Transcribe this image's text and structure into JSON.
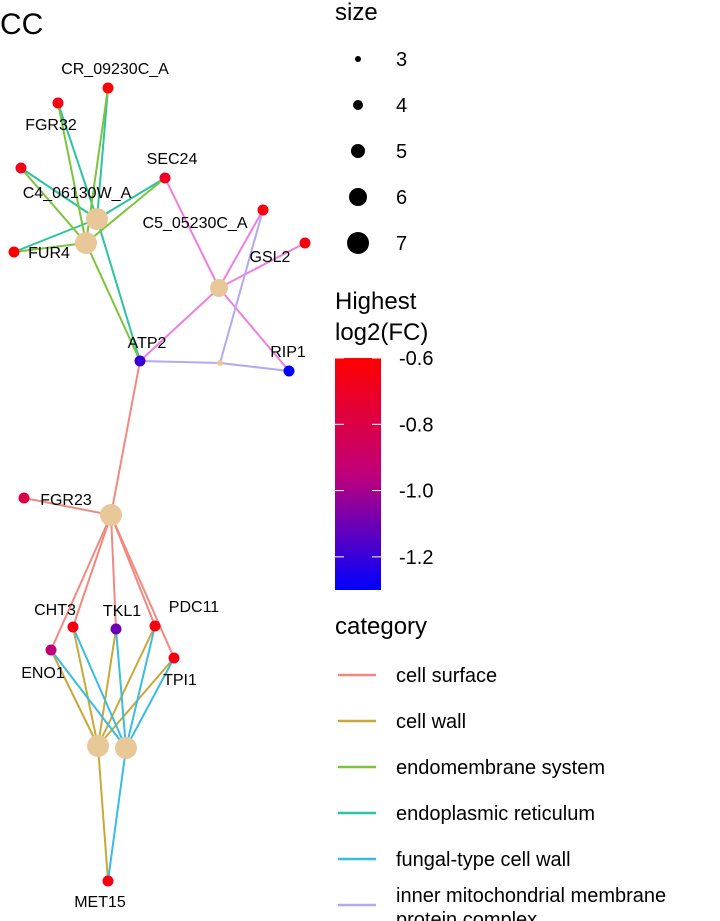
{
  "title": "CC",
  "legend_size": {
    "title": "size",
    "items": [
      {
        "label": "3",
        "value": 3
      },
      {
        "label": "4",
        "value": 4
      },
      {
        "label": "5",
        "value": 5
      },
      {
        "label": "6",
        "value": 6
      },
      {
        "label": "7",
        "value": 7
      }
    ]
  },
  "legend_fc": {
    "title_lines": [
      "Highest",
      "log2(FC)"
    ],
    "min": -1.3,
    "max": -0.6,
    "colors": [
      "#ff0000",
      "#0000ff"
    ],
    "ticks": [
      {
        "label": "-0.6",
        "value": -0.6
      },
      {
        "label": "-0.8",
        "value": -0.8
      },
      {
        "label": "-1.0",
        "value": -1.0
      },
      {
        "label": "-1.2",
        "value": -1.2
      }
    ]
  },
  "legend_category": {
    "title": "category",
    "items": [
      {
        "label": "cell surface",
        "color": "#f08a80"
      },
      {
        "label": "cell wall",
        "color": "#c8a83a"
      },
      {
        "label": "endomembrane system",
        "color": "#7cc43a"
      },
      {
        "label": "endoplasmic reticulum",
        "color": "#2cc4a0"
      },
      {
        "label": "fungal-type cell wall",
        "color": "#38bde0"
      },
      {
        "label": "inner mitochondrial membrane protein complex",
        "color": "#b4a8f2"
      }
    ]
  },
  "hub_color": "#e8c898",
  "genes": [
    {
      "id": "CR_09230C_A",
      "fc": -0.6
    },
    {
      "id": "FGR32",
      "fc": -0.65
    },
    {
      "id": "C4_06130W_A",
      "fc": -0.68
    },
    {
      "id": "SEC24",
      "fc": -0.7
    },
    {
      "id": "C5_05230C_A",
      "fc": -0.65
    },
    {
      "id": "FUR4",
      "fc": -0.6
    },
    {
      "id": "GSL2",
      "fc": -0.65
    },
    {
      "id": "ATP2",
      "fc": -1.2
    },
    {
      "id": "RIP1",
      "fc": -1.3
    },
    {
      "id": "FGR23",
      "fc": -0.8
    },
    {
      "id": "CHT3",
      "fc": -0.65
    },
    {
      "id": "TKL1",
      "fc": -1.1
    },
    {
      "id": "PDC11",
      "fc": -0.65
    },
    {
      "id": "ENO1",
      "fc": -0.95
    },
    {
      "id": "TPI1",
      "fc": -0.65
    },
    {
      "id": "MET15",
      "fc": -0.65
    }
  ],
  "hubs": [
    {
      "id": "hub-endoplasmic-reticulum",
      "size": 7
    },
    {
      "id": "hub-endomembrane-system",
      "size": 7
    },
    {
      "id": "hub-vesicle",
      "size": 6
    },
    {
      "id": "hub-inner-mitochondrial",
      "size": 3
    },
    {
      "id": "hub-cell-surface",
      "size": 7
    },
    {
      "id": "hub-cell-wall",
      "size": 7
    },
    {
      "id": "hub-fungal-type-cell-wall",
      "size": 7
    }
  ],
  "edges": [
    {
      "from": "hub-endoplasmic-reticulum",
      "to": "CR_09230C_A",
      "category": "endoplasmic reticulum"
    },
    {
      "from": "hub-endoplasmic-reticulum",
      "to": "FGR32",
      "category": "endoplasmic reticulum"
    },
    {
      "from": "hub-endoplasmic-reticulum",
      "to": "C4_06130W_A",
      "category": "endoplasmic reticulum"
    },
    {
      "from": "hub-endoplasmic-reticulum",
      "to": "SEC24",
      "category": "endoplasmic reticulum"
    },
    {
      "from": "hub-endoplasmic-reticulum",
      "to": "FUR4",
      "category": "endoplasmic reticulum"
    },
    {
      "from": "hub-endoplasmic-reticulum",
      "to": "ATP2",
      "category": "endoplasmic reticulum"
    },
    {
      "from": "hub-endomembrane-system",
      "to": "CR_09230C_A",
      "category": "endomembrane system"
    },
    {
      "from": "hub-endomembrane-system",
      "to": "FGR32",
      "category": "endomembrane system"
    },
    {
      "from": "hub-endomembrane-system",
      "to": "C4_06130W_A",
      "category": "endomembrane system"
    },
    {
      "from": "hub-endomembrane-system",
      "to": "SEC24",
      "category": "endomembrane system"
    },
    {
      "from": "hub-endomembrane-system",
      "to": "FUR4",
      "category": "endomembrane system"
    },
    {
      "from": "hub-endomembrane-system",
      "to": "ATP2",
      "category": "endomembrane system"
    },
    {
      "from": "hub-vesicle",
      "to": "SEC24",
      "category": ""
    },
    {
      "from": "hub-vesicle",
      "to": "C5_05230C_A",
      "category": ""
    },
    {
      "from": "hub-vesicle",
      "to": "GSL2",
      "category": ""
    },
    {
      "from": "hub-vesicle",
      "to": "ATP2",
      "category": ""
    },
    {
      "from": "hub-vesicle",
      "to": "RIP1",
      "category": ""
    },
    {
      "from": "hub-inner-mitochondrial",
      "to": "ATP2",
      "category": "inner mitochondrial membrane protein complex"
    },
    {
      "from": "hub-inner-mitochondrial",
      "to": "RIP1",
      "category": "inner mitochondrial membrane protein complex"
    },
    {
      "from": "hub-inner-mitochondrial",
      "to": "C5_05230C_A",
      "category": "inner mitochondrial membrane protein complex"
    },
    {
      "from": "hub-cell-surface",
      "to": "ATP2",
      "category": "cell surface"
    },
    {
      "from": "hub-cell-surface",
      "to": "FGR23",
      "category": "cell surface"
    },
    {
      "from": "hub-cell-surface",
      "to": "CHT3",
      "category": "cell surface"
    },
    {
      "from": "hub-cell-surface",
      "to": "TKL1",
      "category": "cell surface"
    },
    {
      "from": "hub-cell-surface",
      "to": "PDC11",
      "category": "cell surface"
    },
    {
      "from": "hub-cell-surface",
      "to": "ENO1",
      "category": "cell surface"
    },
    {
      "from": "hub-cell-surface",
      "to": "TPI1",
      "category": "cell surface"
    },
    {
      "from": "hub-cell-wall",
      "to": "CHT3",
      "category": "cell wall"
    },
    {
      "from": "hub-cell-wall",
      "to": "TKL1",
      "category": "cell wall"
    },
    {
      "from": "hub-cell-wall",
      "to": "PDC11",
      "category": "cell wall"
    },
    {
      "from": "hub-cell-wall",
      "to": "ENO1",
      "category": "cell wall"
    },
    {
      "from": "hub-cell-wall",
      "to": "TPI1",
      "category": "cell wall"
    },
    {
      "from": "hub-cell-wall",
      "to": "MET15",
      "category": "cell wall"
    },
    {
      "from": "hub-fungal-type-cell-wall",
      "to": "CHT3",
      "category": "fungal-type cell wall"
    },
    {
      "from": "hub-fungal-type-cell-wall",
      "to": "TKL1",
      "category": "fungal-type cell wall"
    },
    {
      "from": "hub-fungal-type-cell-wall",
      "to": "PDC11",
      "category": "fungal-type cell wall"
    },
    {
      "from": "hub-fungal-type-cell-wall",
      "to": "ENO1",
      "category": "fungal-type cell wall"
    },
    {
      "from": "hub-fungal-type-cell-wall",
      "to": "TPI1",
      "category": "fungal-type cell wall"
    },
    {
      "from": "hub-fungal-type-cell-wall",
      "to": "MET15",
      "category": "fungal-type cell wall"
    }
  ],
  "unlisted_edge_color": "#f07ee0"
}
